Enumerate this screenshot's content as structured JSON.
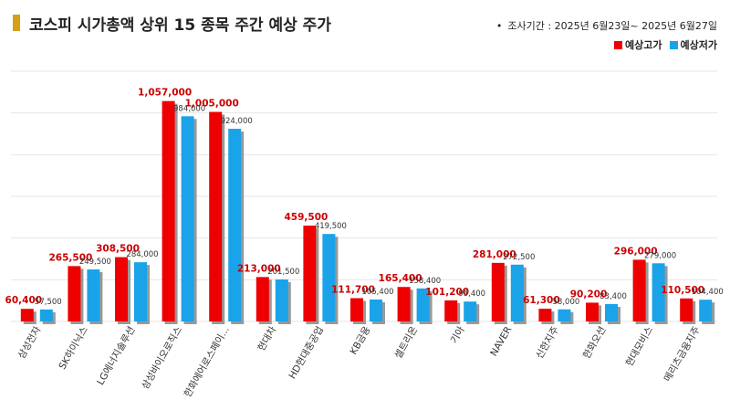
{
  "title": "코스피 시가총액 상위 15 종목 주간 예상 주가",
  "period": {
    "bullet": "•",
    "text": "조사기간 : 2025년 6월23일~ 2025년 6월27일"
  },
  "legend": {
    "high": "예상고가",
    "low": "예상저가"
  },
  "colors": {
    "high": "#ee0000",
    "low": "#1aa3e8",
    "accent": "#d4a017"
  },
  "chart_data": {
    "type": "bar",
    "categories": [
      "삼성전자",
      "SK하이닉스",
      "LG에너지솔루션",
      "삼성바이오로직스",
      "한화에어로스페이...",
      "현대차",
      "HD현대중공업",
      "KB금융",
      "셀트리온",
      "기아",
      "NAVER",
      "신한지주",
      "한화오션",
      "현대모비스",
      "메리츠금융지주"
    ],
    "series": [
      {
        "name": "예상고가",
        "values": [
          60400,
          265500,
          308500,
          1057000,
          1005000,
          213000,
          459500,
          111700,
          165400,
          101200,
          281000,
          61300,
          90200,
          296000,
          110500
        ],
        "labels": [
          "60,400",
          "265,500",
          "308,500",
          "1,057,000",
          "1,005,000",
          "213,000",
          "459,500",
          "111,700",
          "165,400",
          "101,200",
          "281,000",
          "61,300",
          "90,200",
          "296,000",
          "110,500"
        ]
      },
      {
        "name": "예상저가",
        "values": [
          57500,
          249500,
          284000,
          984000,
          924000,
          201500,
          419500,
          105400,
          158400,
          95400,
          272500,
          58000,
          83400,
          279000,
          104400
        ],
        "labels": [
          "57,500",
          "249,500",
          "284,000",
          "984,000",
          "924,000",
          "201,500",
          "419,500",
          "105,400",
          "158,400",
          "95,400",
          "272,500",
          "58,000",
          "83,400",
          "279,000",
          "104,400"
        ]
      }
    ],
    "ylim": [
      0,
      1200000
    ],
    "grid": true
  }
}
